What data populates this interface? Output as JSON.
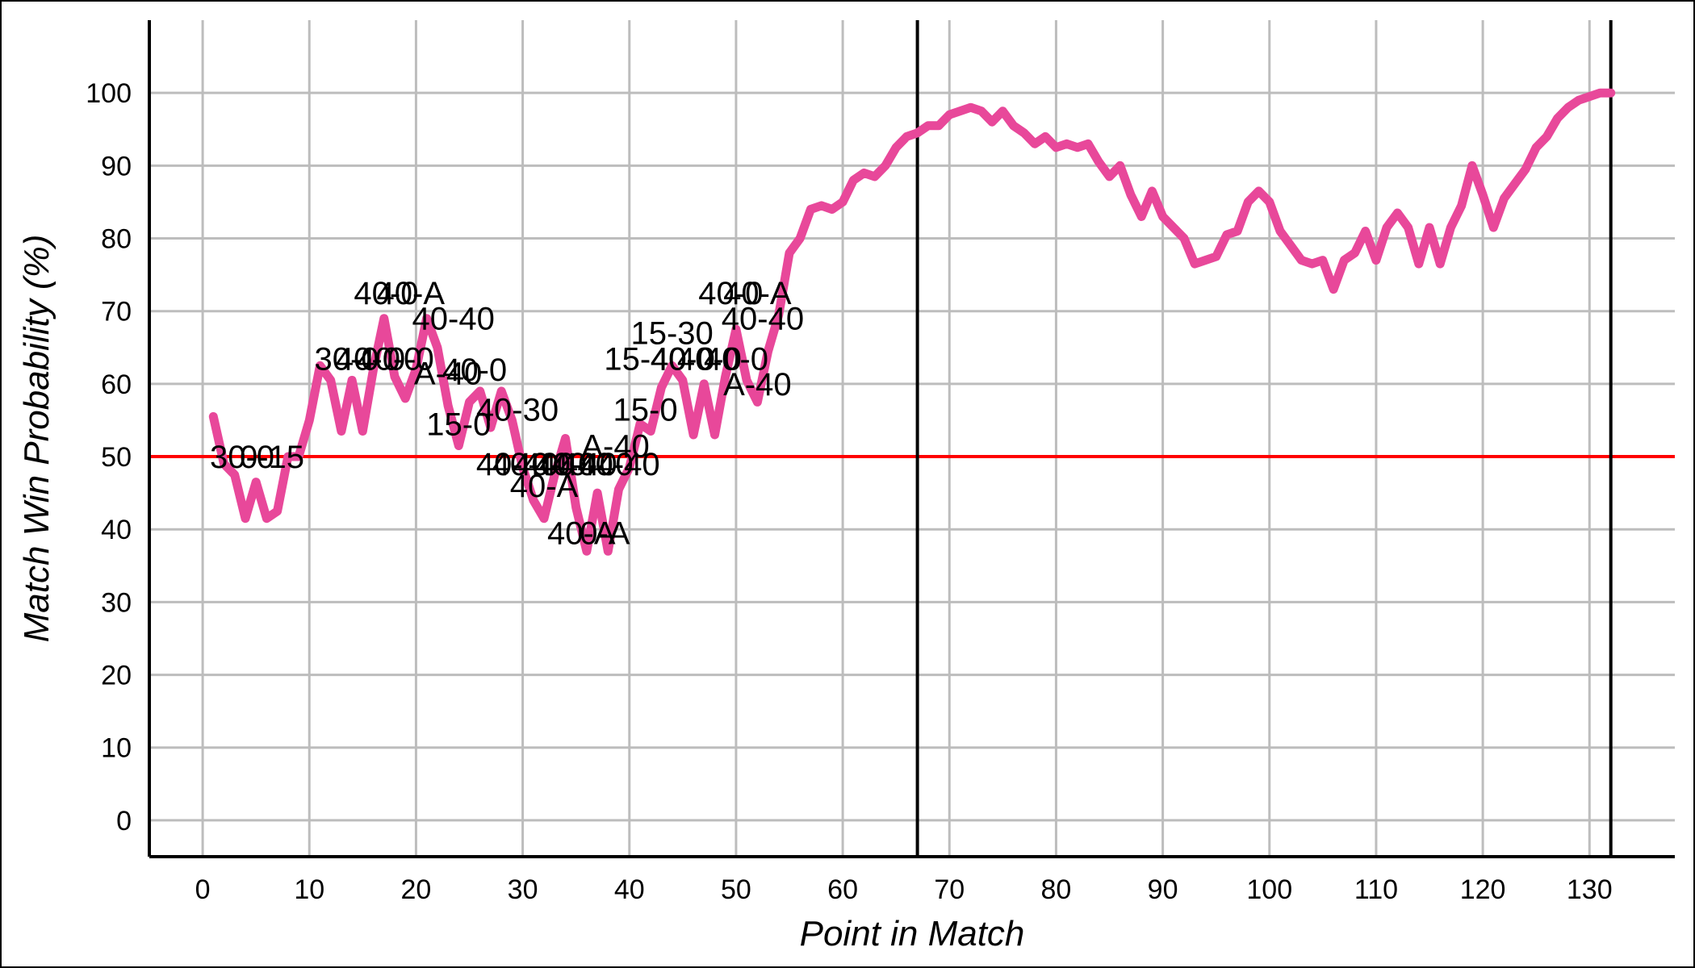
{
  "chart_data": {
    "type": "line",
    "title": "",
    "xlabel": "Point in Match",
    "ylabel": "Match Win Probability (%)",
    "xlim": [
      -5,
      138
    ],
    "ylim": [
      -5,
      110
    ],
    "xticks": [
      0,
      10,
      20,
      30,
      40,
      50,
      60,
      70,
      80,
      90,
      100,
      110,
      120,
      130
    ],
    "yticks": [
      0,
      10,
      20,
      30,
      40,
      50,
      60,
      70,
      80,
      90,
      100
    ],
    "grid": true,
    "reference_line": {
      "y": 50,
      "color": "#ff0000"
    },
    "vertical_markers": [
      67,
      132
    ],
    "series": [
      {
        "color": "#e8489a",
        "x": [
          1,
          2,
          3,
          4,
          5,
          6,
          7,
          8,
          9,
          10,
          11,
          12,
          13,
          14,
          15,
          16,
          17,
          18,
          19,
          20,
          21,
          22,
          23,
          24,
          25,
          26,
          27,
          28,
          29,
          30,
          31,
          32,
          33,
          34,
          35,
          36,
          37,
          38,
          39,
          40,
          41,
          42,
          43,
          44,
          45,
          46,
          47,
          48,
          49,
          50,
          51,
          52,
          53,
          54,
          55,
          56,
          57,
          58,
          59,
          60,
          61,
          62,
          63,
          64,
          65,
          66,
          67,
          68,
          69,
          70,
          71,
          72,
          73,
          74,
          75,
          76,
          77,
          78,
          79,
          80,
          81,
          82,
          83,
          84,
          85,
          86,
          87,
          88,
          89,
          90,
          91,
          92,
          93,
          94,
          95,
          96,
          97,
          98,
          99,
          100,
          101,
          102,
          103,
          104,
          105,
          106,
          107,
          108,
          109,
          110,
          111,
          112,
          113,
          114,
          115,
          116,
          117,
          118,
          119,
          120,
          121,
          122,
          123,
          124,
          125,
          126,
          127,
          128,
          129,
          130,
          131,
          132
        ],
        "y": [
          55.5,
          49.0,
          47.5,
          41.5,
          46.5,
          41.5,
          42.5,
          50.0,
          50.0,
          55.0,
          62.5,
          60.5,
          53.5,
          60.5,
          53.5,
          62.0,
          69.0,
          61.0,
          58.0,
          62.0,
          69.0,
          65.0,
          57.0,
          51.5,
          57.5,
          59.0,
          54.0,
          59.0,
          55.0,
          48.5,
          44.0,
          41.5,
          47.5,
          52.5,
          43.0,
          37.0,
          45.0,
          37.0,
          45.5,
          48.5,
          54.5,
          53.5,
          59.5,
          62.5,
          60.5,
          53.0,
          60.0,
          53.0,
          61.0,
          67.5,
          60.5,
          57.5,
          64.5,
          69.5,
          78.0,
          80.0,
          84.0,
          84.5,
          84.0,
          85.0,
          88.0,
          89.0,
          88.5,
          90.0,
          92.5,
          94.0,
          94.5,
          95.5,
          95.5,
          97.0,
          97.5,
          98.0,
          97.5,
          96.0,
          97.5,
          95.5,
          94.5,
          93.0,
          94.0,
          92.5,
          93.0,
          92.5,
          93.0,
          90.5,
          88.5,
          90.0,
          86.0,
          83.0,
          86.5,
          83.0,
          81.5,
          80.0,
          76.5,
          77.0,
          77.5,
          80.5,
          81.0,
          85.0,
          86.5,
          85.0,
          81.0,
          79.0,
          77.0,
          76.5,
          77.0,
          73.0,
          77.0,
          78.0,
          81.0,
          77.0,
          81.5,
          83.5,
          81.5,
          76.5,
          81.5,
          76.5,
          81.5,
          84.5,
          90.0,
          86.0,
          81.5,
          85.5,
          87.5,
          89.5,
          92.5,
          94.0,
          96.5,
          98.0,
          99.0,
          99.5,
          100.0,
          100.0
        ]
      }
    ],
    "annotations": [
      {
        "text": "30-0",
        "x": 3.7,
        "y": 50.0
      },
      {
        "text": "0-15",
        "x": 6.5,
        "y": 50.0
      },
      {
        "text": "30-0",
        "x": 13.5,
        "y": 63.5
      },
      {
        "text": "40-0",
        "x": 15.5,
        "y": 63.5
      },
      {
        "text": "40-0",
        "x": 17.5,
        "y": 63.5
      },
      {
        "text": "0-0",
        "x": 19.5,
        "y": 63.5
      },
      {
        "text": "40-0",
        "x": 17.2,
        "y": 72.5
      },
      {
        "text": "40-A",
        "x": 19.5,
        "y": 72.5
      },
      {
        "text": "40-40",
        "x": 23.5,
        "y": 69.0
      },
      {
        "text": "A-40",
        "x": 23.0,
        "y": 61.5
      },
      {
        "text": "40-0",
        "x": 25.5,
        "y": 62.0
      },
      {
        "text": "15-0",
        "x": 24.0,
        "y": 54.5
      },
      {
        "text": "40-30",
        "x": 29.5,
        "y": 56.5
      },
      {
        "text": "40-A",
        "x": 32.0,
        "y": 46.0
      },
      {
        "text": "40-40",
        "x": 29.5,
        "y": 49.0
      },
      {
        "text": "40-40",
        "x": 31.0,
        "y": 49.0
      },
      {
        "text": "40-40",
        "x": 33.0,
        "y": 49.0
      },
      {
        "text": "40-40",
        "x": 35.0,
        "y": 49.0
      },
      {
        "text": "40-40",
        "x": 36.5,
        "y": 49.0
      },
      {
        "text": "A-40",
        "x": 38.7,
        "y": 51.5
      },
      {
        "text": "40-40",
        "x": 39.0,
        "y": 49.0
      },
      {
        "text": "40-A",
        "x": 35.5,
        "y": 39.5
      },
      {
        "text": "0-A",
        "x": 37.7,
        "y": 39.5
      },
      {
        "text": "15-0",
        "x": 41.5,
        "y": 56.5
      },
      {
        "text": "15-30",
        "x": 44.0,
        "y": 67.0
      },
      {
        "text": "15-40",
        "x": 41.5,
        "y": 63.5
      },
      {
        "text": "40-0",
        "x": 45.0,
        "y": 63.5
      },
      {
        "text": "40-0",
        "x": 47.5,
        "y": 63.5
      },
      {
        "text": "40-0",
        "x": 50.0,
        "y": 63.5
      },
      {
        "text": "40-0",
        "x": 49.5,
        "y": 72.5
      },
      {
        "text": "40-A",
        "x": 52.0,
        "y": 72.5
      },
      {
        "text": "40-40",
        "x": 52.5,
        "y": 69.0
      },
      {
        "text": "A-40",
        "x": 52.0,
        "y": 60.0
      }
    ]
  }
}
